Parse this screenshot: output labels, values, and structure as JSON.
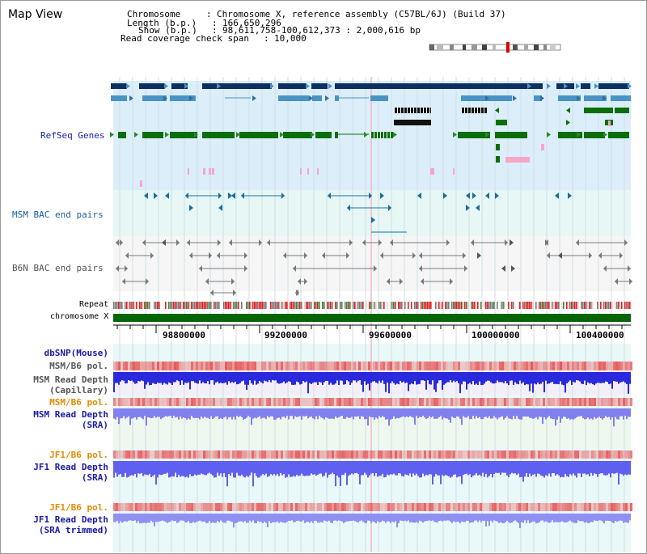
{
  "title": "Map View",
  "info": {
    "chromosome_key": "Chromosome",
    "chromosome_val": "Chromosome X, reference assembly (C57BL/6J) (Build 37)",
    "length_key": "Length (b.p.)",
    "length_val": "166,650,296",
    "show_key": "Show (b.p.)",
    "show_val": "98,611,758-100,612,373 : 2,000,616 bp",
    "coverage_key": "Read coverage check span",
    "coverage_val": "10,000"
  },
  "tracks": {
    "refseq": "RefSeq Genes",
    "msm_bac": "MSM BAC end pairs",
    "b6n_bac": "B6N BAC end pairs",
    "repeat": "Repeat",
    "chromosome": "chromosome X"
  },
  "axis": {
    "ticks": [
      "98800000",
      "99200000",
      "99600000",
      "100000000",
      "100400000"
    ]
  },
  "lower_tracks": {
    "dbsnp": "dbSNP(Mouse)",
    "msm_b6_pol_1": "MSM/B6 pol.",
    "msm_rd_cap_1": "MSM Read Depth",
    "msm_rd_cap_2": "(Capillary)",
    "msm_b6_pol_2": "MSM/B6 pol.",
    "msm_rd_sra_1": "MSM Read Depth",
    "msm_rd_sra_2": "(SRA)",
    "jf1_b6_pol_1": "JF1/B6 pol.",
    "jf1_rd_sra_1": "JF1 Read Depth",
    "jf1_rd_sra_2": "(SRA)",
    "jf1_b6_pol_2": "JF1/B6 pol.",
    "jf1_rd_trim_1": "JF1 Read Depth",
    "jf1_rd_trim_2": "(SRA trimmed)"
  },
  "colors": {
    "refseq_bg": "#dbeefa",
    "bac_bg": "#e6f7f6",
    "gene_dark": "#0d2f62",
    "gene_mid": "#4a94c4",
    "gene_green": "#0a6e0a",
    "chromosome_bar": "#066506",
    "depth_blue": "#2a2adc",
    "pol_red": "#e83c3c",
    "label_blue": "#1a1aa8",
    "label_orange": "#e58a00"
  }
}
